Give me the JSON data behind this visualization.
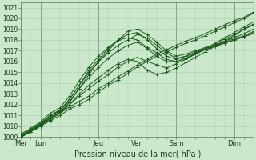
{
  "title": "",
  "xlabel": "Pression niveau de la mer( hPa )",
  "ylabel": "",
  "ylim": [
    1009,
    1021.5
  ],
  "xlim": [
    0,
    144
  ],
  "yticks": [
    1009,
    1010,
    1011,
    1012,
    1013,
    1014,
    1015,
    1016,
    1017,
    1018,
    1019,
    1020,
    1021
  ],
  "xtick_positions": [
    0,
    12,
    48,
    72,
    96,
    132
  ],
  "xtick_labels": [
    "Mer",
    "Lun",
    "Jeu",
    "Ven",
    "Sam",
    "Dim"
  ],
  "vline_positions": [
    12,
    48,
    72,
    96,
    132
  ],
  "bg_color": "#cce8cc",
  "grid_color": "#aaccaa",
  "line_color": "#1a5c1a",
  "marker_color": "#1a5c1a",
  "series": [
    [
      0,
      1009.0,
      3,
      1009.3,
      6,
      1009.5,
      9,
      1009.8,
      12,
      1010.0,
      18,
      1010.5,
      24,
      1011.0,
      30,
      1011.6,
      36,
      1012.0,
      42,
      1012.5,
      48,
      1013.2,
      54,
      1013.8,
      60,
      1014.3,
      66,
      1014.9,
      72,
      1015.5,
      78,
      1016.0,
      84,
      1016.5,
      90,
      1016.9,
      96,
      1017.3,
      102,
      1017.7,
      108,
      1018.0,
      114,
      1018.4,
      120,
      1018.8,
      126,
      1019.2,
      132,
      1019.6,
      138,
      1020.0,
      144,
      1020.5
    ],
    [
      0,
      1009.1,
      3,
      1009.4,
      6,
      1009.6,
      9,
      1009.9,
      12,
      1010.1,
      18,
      1010.6,
      24,
      1011.2,
      30,
      1011.8,
      36,
      1012.3,
      42,
      1012.8,
      48,
      1013.5,
      54,
      1014.0,
      60,
      1014.6,
      66,
      1015.1,
      72,
      1015.7,
      78,
      1016.2,
      84,
      1016.7,
      90,
      1017.1,
      96,
      1017.5,
      102,
      1017.9,
      108,
      1018.2,
      114,
      1018.6,
      120,
      1019.0,
      126,
      1019.4,
      132,
      1019.8,
      138,
      1020.1,
      144,
      1020.6
    ],
    [
      0,
      1009.1,
      6,
      1009.6,
      12,
      1010.2,
      18,
      1010.8,
      24,
      1011.3,
      30,
      1012.0,
      36,
      1012.8,
      42,
      1013.5,
      48,
      1014.2,
      54,
      1014.8,
      60,
      1015.5,
      66,
      1016.0,
      72,
      1016.4,
      78,
      1016.0,
      84,
      1015.7,
      90,
      1015.4,
      96,
      1015.8,
      102,
      1016.2,
      108,
      1016.7,
      114,
      1017.2,
      120,
      1017.7,
      126,
      1018.2,
      132,
      1018.7,
      138,
      1019.2,
      144,
      1019.7
    ],
    [
      0,
      1009.0,
      6,
      1009.5,
      12,
      1010.1,
      18,
      1010.7,
      24,
      1011.2,
      30,
      1012.0,
      36,
      1013.0,
      42,
      1013.8,
      48,
      1014.5,
      54,
      1015.2,
      60,
      1015.8,
      66,
      1016.2,
      72,
      1016.0,
      78,
      1015.2,
      84,
      1014.8,
      90,
      1015.0,
      96,
      1015.4,
      102,
      1015.9,
      108,
      1016.4,
      114,
      1016.9,
      120,
      1017.4,
      126,
      1017.9,
      132,
      1018.4,
      138,
      1019.0,
      144,
      1019.5
    ],
    [
      0,
      1009.2,
      6,
      1009.7,
      12,
      1010.3,
      18,
      1011.0,
      24,
      1011.5,
      30,
      1012.3,
      36,
      1013.5,
      42,
      1014.5,
      48,
      1015.5,
      54,
      1016.3,
      60,
      1017.0,
      66,
      1017.5,
      72,
      1017.8,
      78,
      1017.2,
      84,
      1016.5,
      90,
      1016.0,
      96,
      1016.0,
      102,
      1016.3,
      108,
      1016.8,
      114,
      1017.2,
      120,
      1017.6,
      126,
      1018.1,
      132,
      1018.5,
      138,
      1019.0,
      144,
      1019.4
    ],
    [
      0,
      1009.1,
      6,
      1009.6,
      12,
      1010.2,
      18,
      1011.0,
      24,
      1011.5,
      30,
      1012.5,
      36,
      1013.8,
      42,
      1015.0,
      48,
      1016.0,
      54,
      1016.8,
      60,
      1017.5,
      66,
      1018.0,
      72,
      1018.5,
      78,
      1018.2,
      84,
      1017.5,
      90,
      1016.8,
      96,
      1016.3,
      102,
      1016.5,
      108,
      1016.9,
      114,
      1017.2,
      120,
      1017.5,
      126,
      1017.9,
      132,
      1018.2,
      138,
      1018.6,
      144,
      1019.0
    ],
    [
      0,
      1009.0,
      6,
      1009.5,
      12,
      1010.1,
      18,
      1011.0,
      24,
      1011.4,
      30,
      1012.5,
      36,
      1013.8,
      42,
      1015.2,
      48,
      1016.2,
      54,
      1017.2,
      60,
      1018.0,
      66,
      1018.8,
      72,
      1019.0,
      78,
      1018.5,
      84,
      1017.8,
      90,
      1017.0,
      96,
      1016.5,
      102,
      1016.7,
      108,
      1017.0,
      114,
      1017.3,
      120,
      1017.5,
      126,
      1017.8,
      132,
      1018.1,
      138,
      1018.4,
      144,
      1018.8
    ],
    [
      0,
      1009.0,
      6,
      1009.5,
      12,
      1010.0,
      18,
      1010.8,
      24,
      1011.3,
      30,
      1012.2,
      36,
      1013.5,
      42,
      1014.8,
      48,
      1016.0,
      54,
      1017.0,
      60,
      1018.0,
      66,
      1018.5,
      72,
      1018.7,
      78,
      1018.0,
      84,
      1017.2,
      90,
      1016.5,
      96,
      1016.2,
      102,
      1016.5,
      108,
      1016.8,
      114,
      1017.1,
      120,
      1017.4,
      126,
      1017.7,
      132,
      1018.0,
      138,
      1018.3,
      144,
      1018.7
    ],
    [
      0,
      1009.3,
      6,
      1009.8,
      12,
      1010.4,
      18,
      1011.2,
      24,
      1011.7,
      30,
      1012.8,
      36,
      1014.2,
      42,
      1015.5,
      48,
      1016.5,
      54,
      1017.3,
      60,
      1018.0,
      66,
      1018.2,
      72,
      1018.0,
      78,
      1017.3,
      84,
      1016.8,
      90,
      1016.2,
      96,
      1016.0,
      102,
      1016.3,
      108,
      1016.7,
      114,
      1017.1,
      120,
      1017.4,
      126,
      1017.7,
      132,
      1018.0,
      138,
      1018.3,
      144,
      1018.6
    ]
  ]
}
